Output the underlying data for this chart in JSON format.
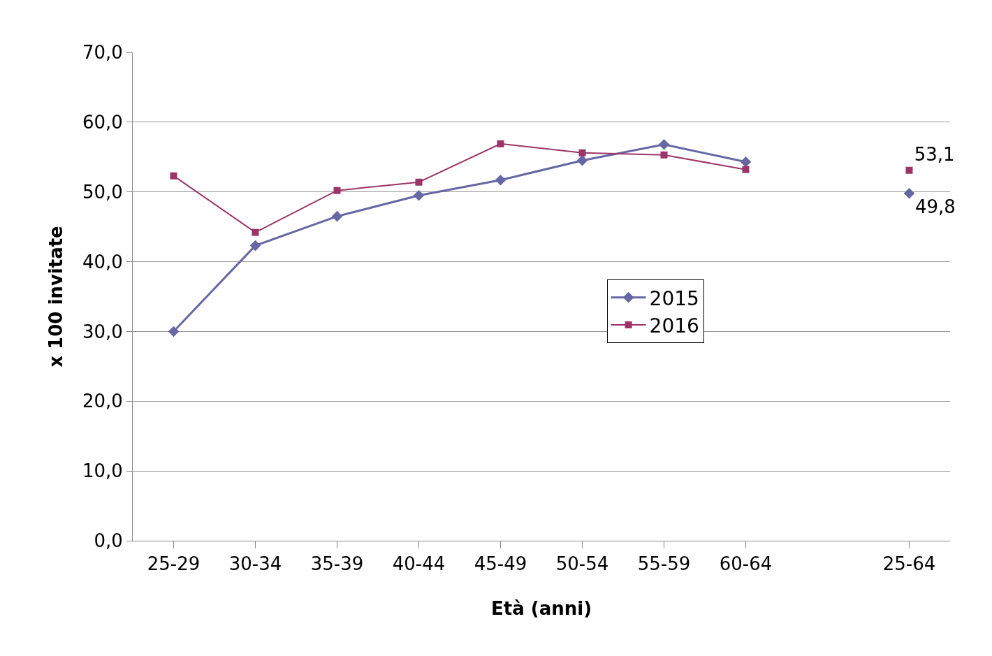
{
  "chart_data": {
    "type": "line",
    "xlabel": "Età (anni)",
    "ylabel": "x 100 invitate",
    "categories": [
      "25-29",
      "30-34",
      "35-39",
      "40-44",
      "45-49",
      "50-54",
      "55-59",
      "60-64",
      null,
      "25-64"
    ],
    "series": [
      {
        "name": "2015",
        "color": "#6667a3",
        "marker": "diamond",
        "values": [
          30.0,
          42.3,
          46.5,
          49.5,
          51.7,
          54.5,
          56.8,
          54.3,
          null,
          49.8
        ],
        "value_labels": [
          null,
          null,
          null,
          null,
          null,
          null,
          null,
          null,
          null,
          "49,8"
        ]
      },
      {
        "name": "2016",
        "color": "#9b3467",
        "marker": "square",
        "values": [
          52.3,
          44.2,
          50.2,
          51.4,
          56.9,
          55.6,
          55.3,
          53.2,
          null,
          53.1
        ],
        "value_labels": [
          null,
          null,
          null,
          null,
          null,
          null,
          null,
          null,
          null,
          "53,1"
        ]
      }
    ],
    "ylim": [
      0,
      70
    ],
    "yticks": [
      {
        "value": 0,
        "label": "0,0"
      },
      {
        "value": 10,
        "label": "10,0"
      },
      {
        "value": 20,
        "label": "20,0"
      },
      {
        "value": 30,
        "label": "30,0"
      },
      {
        "value": 40,
        "label": "40,0"
      },
      {
        "value": 50,
        "label": "50,0"
      },
      {
        "value": 60,
        "label": "60,0"
      },
      {
        "value": 70,
        "label": "70,0"
      }
    ],
    "grid": "y",
    "legend": "right"
  }
}
